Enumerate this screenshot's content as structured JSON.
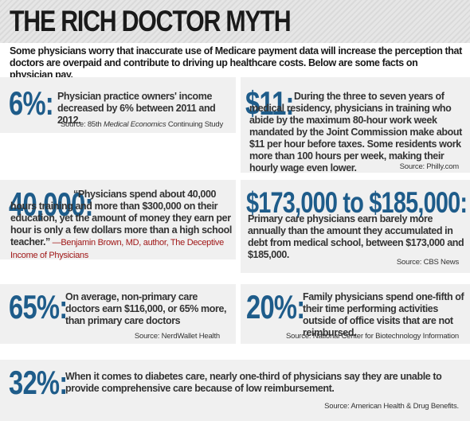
{
  "title": "THE RICH DOCTOR MYTH",
  "intro": "Some physicians worry that inaccurate use of Medicare payment data will increase the perception that doctors are overpaid and contribute to driving up healthcare costs. Below are some facts on physician pay.",
  "facts": [
    {
      "stat": "6%:",
      "text": "Physician practice owners' income decreased by 6% between 2011 and 2012.",
      "source_prefix": "Source: 85th ",
      "source_italic": "Medical Economics",
      "source_suffix": " Continuing Study"
    },
    {
      "stat": "$11:",
      "text": "During the three to seven years of medical residency, physicians in training who abide by the maximum 80-hour work week mandated by the Joint Commission make about $11 per hour before taxes. Some residents work more than 100 hours per week, making their hourly wage even lower.",
      "source": "Source: Philly.com"
    },
    {
      "stat": "40,000:",
      "text": "“Physicians spend about 40,000 hours training and more than $300,000 on their education, yet the amount of money they earn per hour is only a few dollars more than a high school teacher.”",
      "attribution": " —Benjamin Brown, MD, author, The Deceptive Income of  Physicians"
    },
    {
      "stat": "$173,000 to $185,000:",
      "text": "Primary care physicians earn barely more annually than the amount they accumulated in debt from medical school, between $173,000 and $185,000.",
      "source": "Source: CBS News"
    },
    {
      "stat": "65%:",
      "text": "On average, non-primary care doctors earn $116,000, or 65% more, than primary care doctors",
      "source": "Source: NerdWallet Health"
    },
    {
      "stat": "20%:",
      "text": "Family physicians spend one-fifth of their time performing activities outside of office visits that are not reimbursed.",
      "source": "Source: National Center for Biotechnology Information"
    },
    {
      "stat": "32%:",
      "text": "When it comes to diabetes care, nearly one-third of physicians say they are unable to provide comprehensive care because of low reimbursement.",
      "source": "Source: American Health & Drug Benefits."
    }
  ]
}
